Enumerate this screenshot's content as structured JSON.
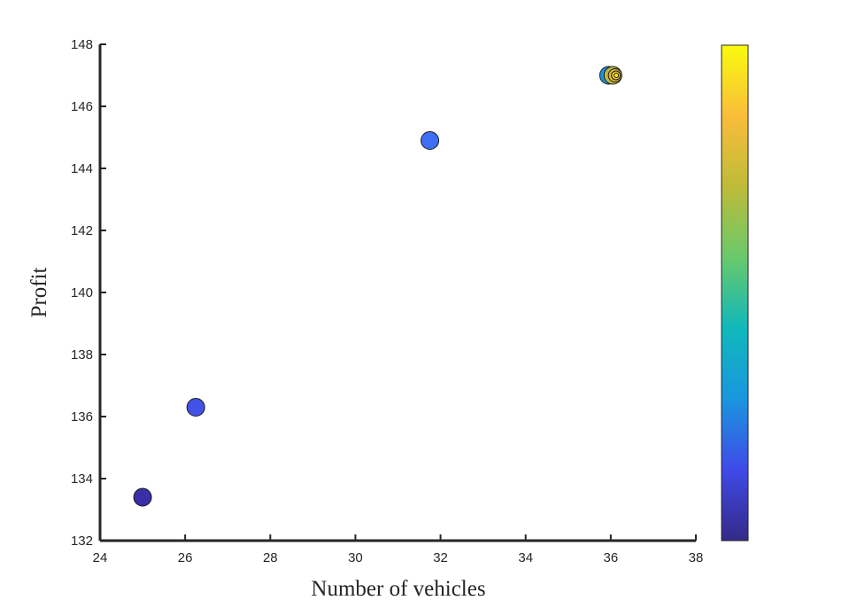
{
  "chart_data": {
    "type": "scatter",
    "title": "",
    "xlabel": "Number of vehicles",
    "ylabel": "Profit",
    "xlim": [
      24,
      38
    ],
    "ylim": [
      132,
      148
    ],
    "xticks": [
      24,
      26,
      28,
      30,
      32,
      34,
      36,
      38
    ],
    "yticks": [
      132,
      134,
      136,
      138,
      140,
      142,
      144,
      146,
      148
    ],
    "xtick_labels": [
      "24",
      "26",
      "28",
      "30",
      "32",
      "34",
      "36",
      "38"
    ],
    "ytick_labels": [
      "132",
      "134",
      "136",
      "138",
      "140",
      "142",
      "144",
      "146",
      "148"
    ],
    "grid": false,
    "colormap": "parula",
    "colormap_stops": [
      "#352a87",
      "#3f4ae8",
      "#1a96df",
      "#10b8bb",
      "#69c96b",
      "#bebb39",
      "#f9bd3a",
      "#f9fb0e"
    ],
    "colorbar": {
      "visible": true,
      "tick_labels": []
    },
    "points": [
      {
        "x": 25.0,
        "y": 133.4,
        "c": 0.02,
        "color": "#3b2fa8"
      },
      {
        "x": 26.25,
        "y": 136.3,
        "c": 0.1,
        "color": "#4352e6"
      },
      {
        "x": 31.75,
        "y": 144.9,
        "c": 0.16,
        "color": "#3d6ff5"
      },
      {
        "x": 35.95,
        "y": 147.0,
        "c": 0.35,
        "color": "#2190df"
      },
      {
        "x": 36.05,
        "y": 147.0,
        "c": 0.7,
        "color": "#b8bb3b"
      },
      {
        "x": 36.1,
        "y": 147.0,
        "c": 0.8,
        "color": "#e3b63a"
      },
      {
        "x": 36.12,
        "y": 147.0,
        "c": 0.9,
        "color": "#f6c934"
      },
      {
        "x": 36.13,
        "y": 147.0,
        "c": 1.0,
        "color": "#f6e81c"
      }
    ]
  }
}
